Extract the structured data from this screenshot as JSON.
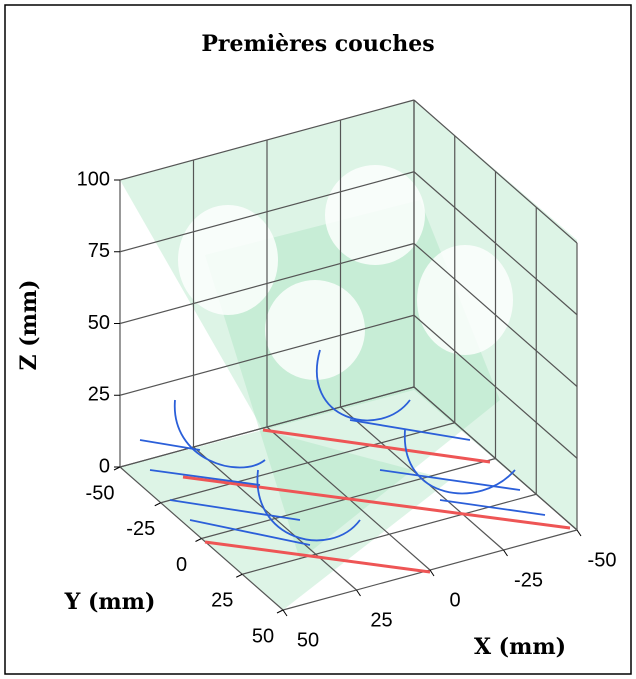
{
  "chart_data": {
    "type": "surface3d",
    "title": "Premières couches",
    "xlabel": "X (mm)",
    "ylabel": "Y (mm)",
    "zlabel": "Z (mm)",
    "xlim": [
      -50,
      50
    ],
    "ylim": [
      -50,
      50
    ],
    "zlim": [
      0,
      100
    ],
    "xticks": [
      -50,
      -25,
      0,
      25,
      50
    ],
    "yticks": [
      -50,
      -25,
      0,
      25,
      50
    ],
    "zticks": [
      0,
      25,
      50,
      75,
      100
    ],
    "grid": true
  }
}
